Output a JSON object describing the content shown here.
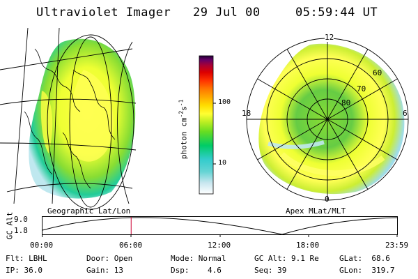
{
  "header": {
    "instrument": "Ultraviolet Imager",
    "date": "29 Jul 00",
    "time": "05:59:44 UT"
  },
  "panels": {
    "left_label": "Geographic Lat/Lon",
    "right_label": "Apex MLat/MLT"
  },
  "colorbar": {
    "unit_label": "photon cm",
    "unit_exp1": "-2",
    "unit_mid": "s",
    "unit_exp2": "-1",
    "ticks": [
      "100",
      "10"
    ],
    "colors": [
      "#ffffff",
      "#c8e6ef",
      "#66d4d4",
      "#33cccc",
      "#00cc66",
      "#66dd22",
      "#bbee22",
      "#ffff33",
      "#ffdd00",
      "#ffaa00",
      "#ff7700",
      "#ff3300",
      "#dd0000",
      "#aa0033",
      "#660066",
      "#220033"
    ]
  },
  "polar": {
    "mlt_labels": {
      "top": "12",
      "left": "18",
      "right": "6",
      "bottom": "0"
    },
    "lat_labels": [
      "60",
      "70",
      "80"
    ]
  },
  "timeline": {
    "ylabel": "GC Alt",
    "y_top": "9.0",
    "y_bottom": "1.8",
    "x_ticks": [
      "00:00",
      "06:00",
      "12:00",
      "18:00",
      "23:59"
    ],
    "current_time_fraction": 0.25
  },
  "info": {
    "flt_label": "Flt:",
    "flt_value": "LBHL",
    "ip_label": "IP:",
    "ip_value": "36.0",
    "door_label": "Door:",
    "door_value": "Open",
    "gain_label": "Gain:",
    "gain_value": "13",
    "mode_label": "Mode:",
    "mode_value": "Normal",
    "dsp_label": "Dsp:",
    "dsp_value": "4.6",
    "gcalt_label": "GC Alt:",
    "gcalt_value": "9.1 Re",
    "seq_label": "Seq:",
    "seq_value": "39",
    "glat_label": "GLat:",
    "glat_value": "68.6",
    "glon_label": "GLon:",
    "glon_value": "319.7"
  }
}
